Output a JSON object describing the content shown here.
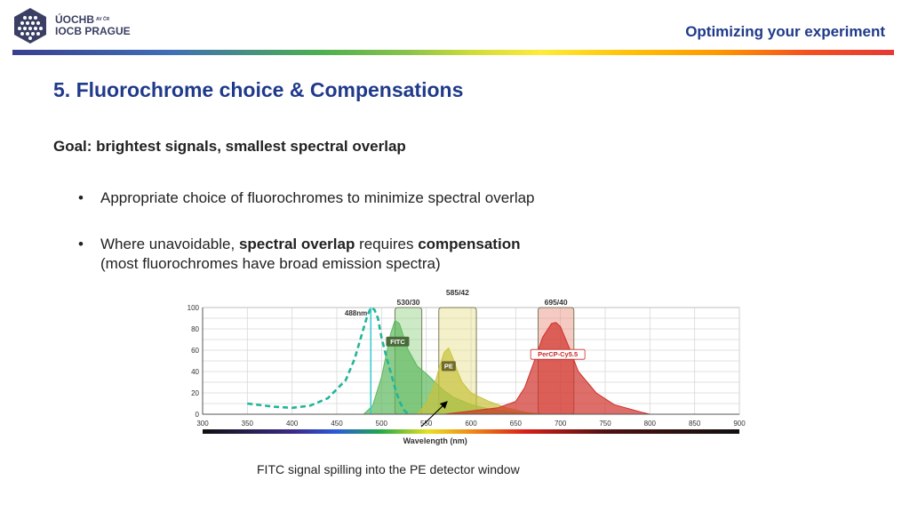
{
  "header": {
    "logo_line1": "ÚOCHB",
    "logo_line1_sub": "AV ČR",
    "logo_line2": "IOCB PRAGUE",
    "section": "Optimizing your experiment"
  },
  "slide": {
    "title": "5. Fluorochrome choice & Compensations",
    "goal": "Goal: brightest signals, smallest spectral overlap",
    "bullet_char": "•",
    "bullet1": "Appropriate choice of fluorochromes to minimize spectral overlap",
    "bullet2_a": "Where unavoidable, ",
    "bullet2_b": "spectral overlap",
    "bullet2_c": " requires ",
    "bullet2_d": "compensation",
    "bullet2_e": "(most fluorochromes have broad emission spectra)",
    "caption": "FITC signal spilling into the PE detector window"
  },
  "colors": {
    "brand_blue": "#1f3a8a",
    "fitc": "#5cb85c",
    "pe": "#c8c23a",
    "percp": "#d0302a",
    "excitation": "#22b59a"
  },
  "chart_data": {
    "type": "area",
    "xlabel": "Wavelength (nm)",
    "ylabel": "",
    "xlim": [
      300,
      900
    ],
    "ylim": [
      0,
      100
    ],
    "xticks": [
      300,
      350,
      400,
      450,
      500,
      550,
      600,
      650,
      700,
      750,
      800,
      850,
      900
    ],
    "yticks": [
      0,
      20,
      40,
      60,
      80,
      100
    ],
    "grid": true,
    "laser": {
      "label": "488nm",
      "x": 488
    },
    "filters": [
      {
        "label": "530/30",
        "center": 530,
        "width": 30
      },
      {
        "label": "585/42",
        "center": 585,
        "width": 42
      },
      {
        "label": "695/40",
        "center": 695,
        "width": 40
      }
    ],
    "series": [
      {
        "name": "FITC",
        "style": "emission",
        "x": [
          480,
          490,
          500,
          505,
          510,
          515,
          520,
          525,
          530,
          540,
          550,
          560,
          570,
          580,
          600,
          620,
          640,
          660,
          680
        ],
        "y": [
          0,
          8,
          35,
          55,
          75,
          88,
          85,
          72,
          60,
          45,
          38,
          30,
          22,
          16,
          9,
          5,
          3,
          1,
          0
        ]
      },
      {
        "name": "PE",
        "style": "emission",
        "x": [
          540,
          550,
          560,
          565,
          570,
          575,
          580,
          585,
          590,
          600,
          620,
          640,
          660,
          680
        ],
        "y": [
          0,
          10,
          30,
          45,
          58,
          62,
          52,
          40,
          30,
          20,
          12,
          6,
          2,
          0
        ]
      },
      {
        "name": "PerCP-Cy5.5",
        "style": "emission",
        "x": [
          570,
          600,
          630,
          650,
          660,
          670,
          680,
          690,
          695,
          700,
          710,
          720,
          740,
          760,
          790,
          800
        ],
        "y": [
          0,
          3,
          6,
          12,
          25,
          48,
          72,
          85,
          86,
          82,
          62,
          40,
          20,
          9,
          2,
          0
        ]
      },
      {
        "name": "excitation",
        "style": "dashed",
        "x": [
          350,
          360,
          380,
          400,
          420,
          440,
          460,
          470,
          478,
          484,
          488,
          492,
          496,
          500,
          505,
          510,
          515,
          520,
          525,
          530
        ],
        "y": [
          10,
          9,
          7,
          6,
          8,
          15,
          32,
          52,
          75,
          92,
          100,
          98,
          90,
          72,
          55,
          40,
          25,
          12,
          4,
          0
        ]
      }
    ],
    "annotation": "FITC signal spilling into the PE detector window"
  }
}
